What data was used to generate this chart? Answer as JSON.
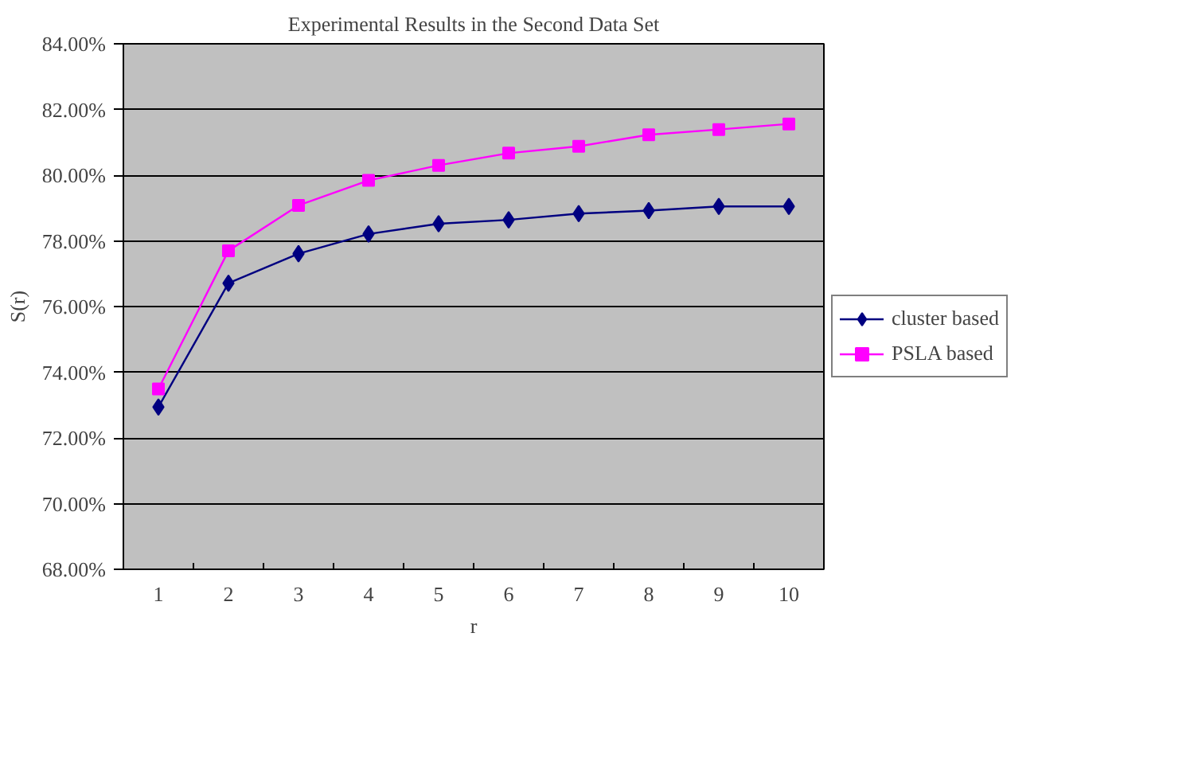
{
  "chart_data": {
    "type": "line",
    "title": "Experimental Results in the Second Data Set",
    "xlabel": "r",
    "ylabel": "S(r)",
    "categories": [
      "1",
      "2",
      "3",
      "4",
      "5",
      "6",
      "7",
      "8",
      "9",
      "10"
    ],
    "series": [
      {
        "name": "cluster based",
        "color": "#000080",
        "marker": "diamond",
        "values": [
          72.94,
          76.71,
          77.61,
          78.21,
          78.52,
          78.64,
          78.83,
          78.92,
          79.05,
          79.05
        ]
      },
      {
        "name": "PSLA based",
        "color": "#ff00ff",
        "marker": "square",
        "values": [
          73.49,
          77.7,
          79.08,
          79.84,
          80.3,
          80.67,
          80.88,
          81.23,
          81.39,
          81.56
        ]
      }
    ],
    "ylim": [
      68,
      84
    ],
    "yticks": [
      {
        "value": 68,
        "label": "68.00%"
      },
      {
        "value": 70,
        "label": "70.00%"
      },
      {
        "value": 72,
        "label": "72.00%"
      },
      {
        "value": 74,
        "label": "74.00%"
      },
      {
        "value": 76,
        "label": "76.00%"
      },
      {
        "value": 78,
        "label": "78.00%"
      },
      {
        "value": 80,
        "label": "80.00%"
      },
      {
        "value": 82,
        "label": "82.00%"
      },
      {
        "value": 84,
        "label": "84.00%"
      }
    ],
    "grid": "y",
    "legend": "right"
  }
}
